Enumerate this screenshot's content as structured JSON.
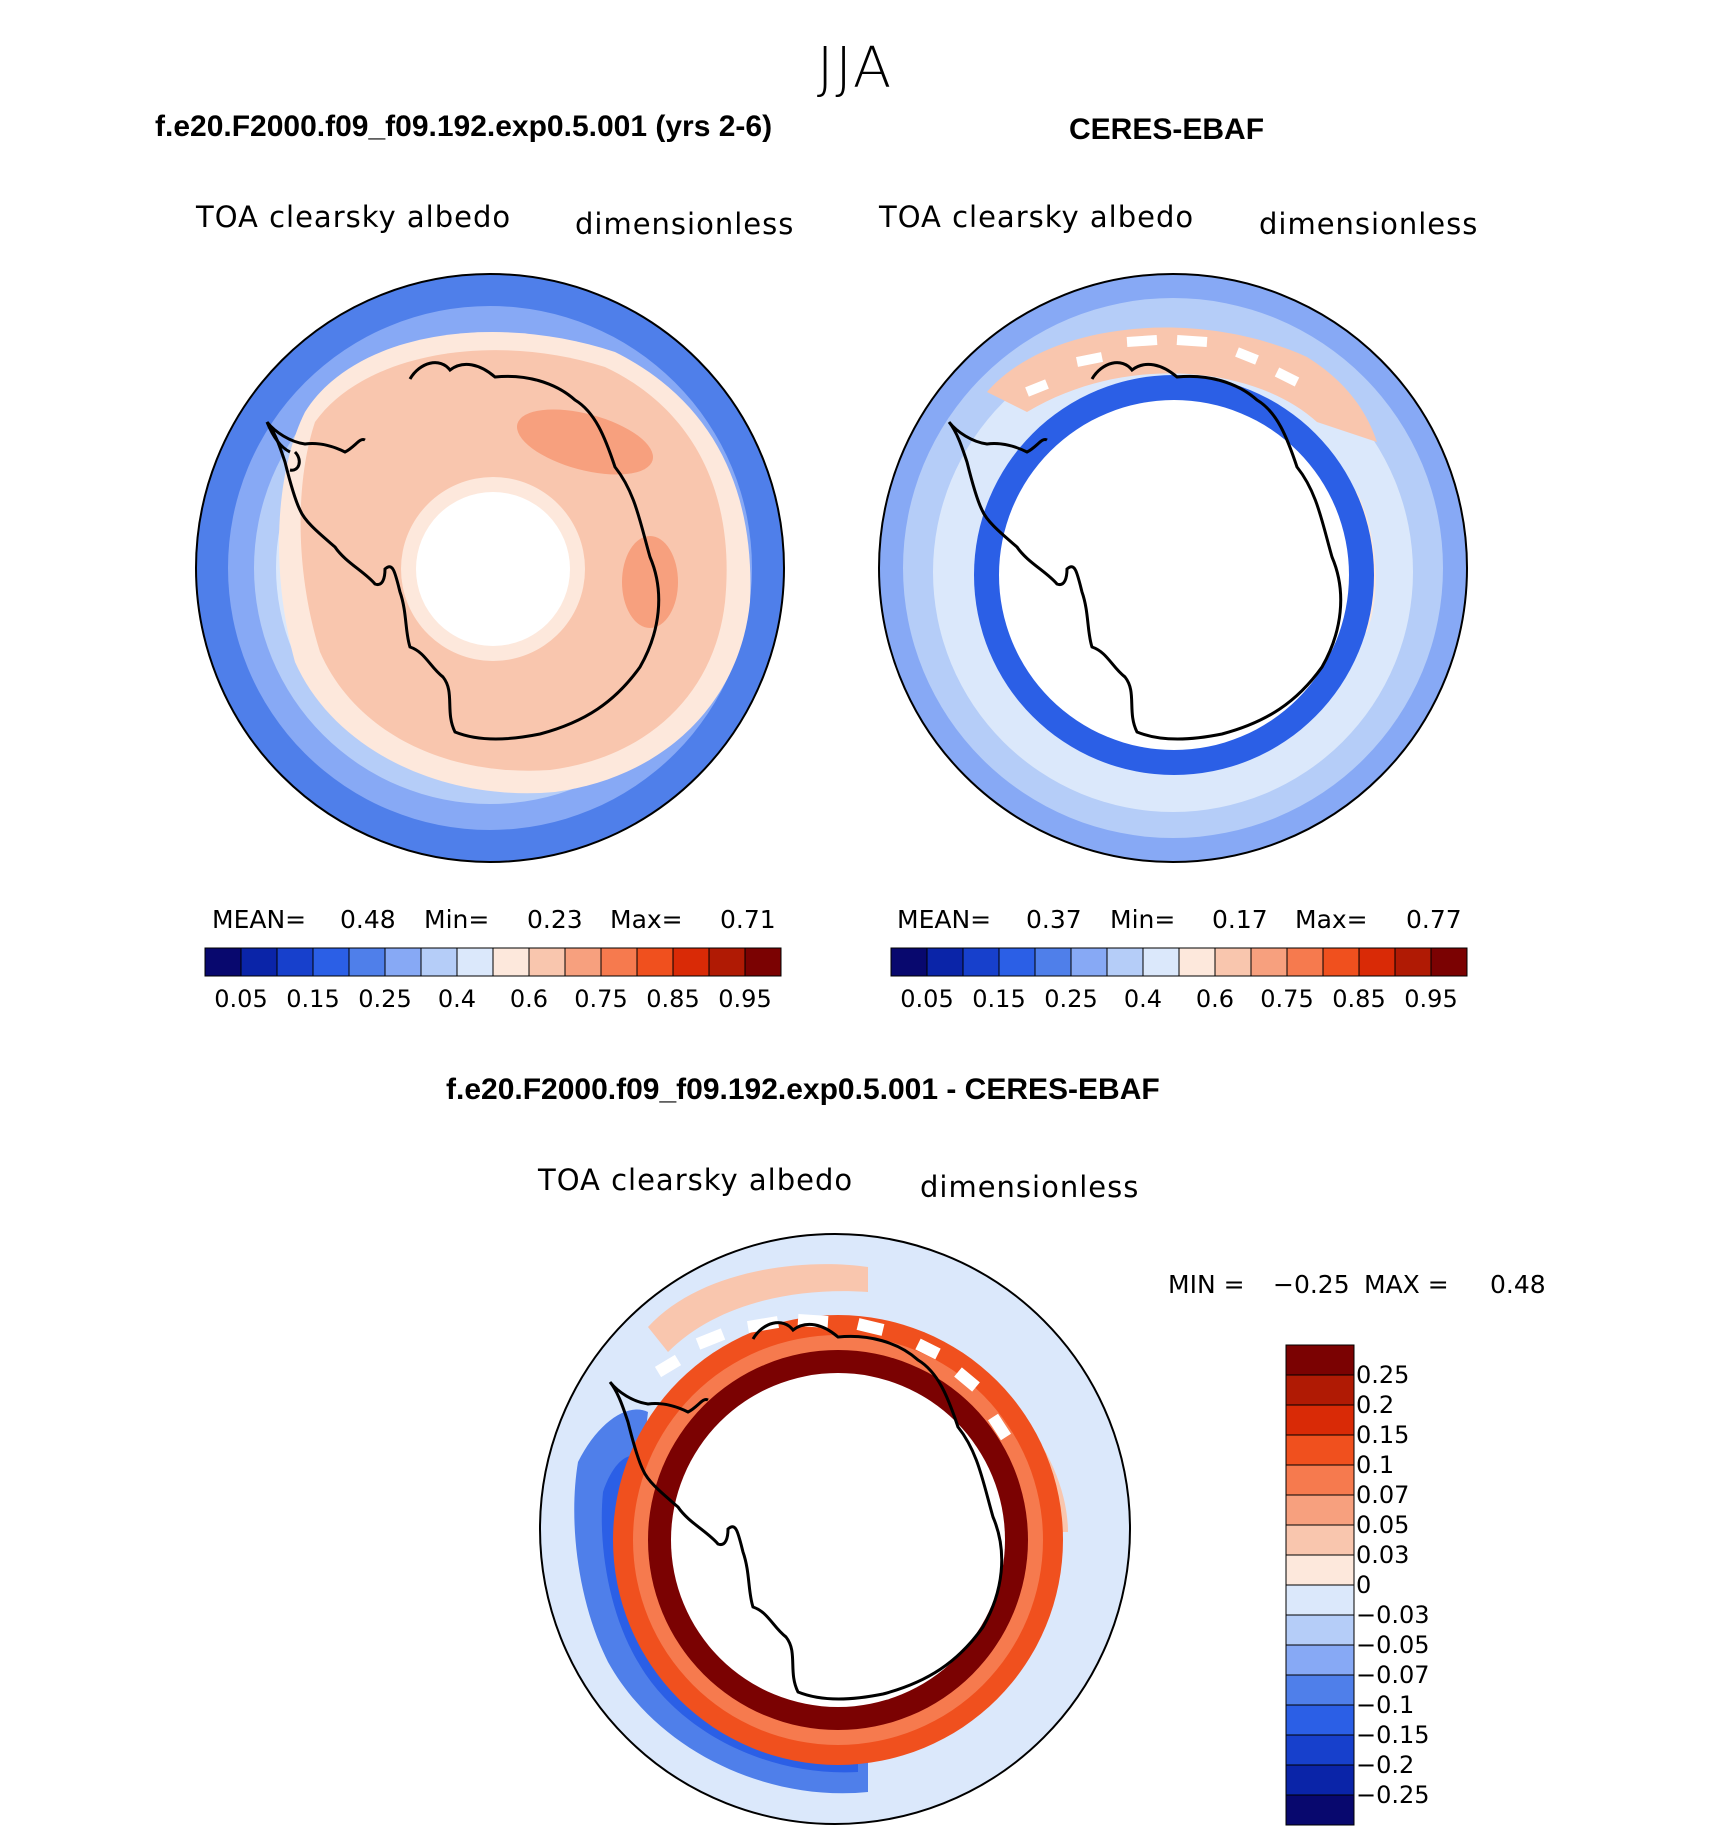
{
  "season": "JJA",
  "panels": {
    "model": {
      "title": "f.e20.F2000.f09_f09.192.exp0.5.001 (yrs 2-6)",
      "variable": "TOA clearsky albedo",
      "units": "dimensionless",
      "mean_label": "MEAN=",
      "mean": "0.48",
      "min_label": "Min=",
      "min": "0.23",
      "max_label": "Max=",
      "max": "0.71"
    },
    "obs": {
      "title": "CERES-EBAF",
      "variable": "TOA clearsky albedo",
      "units": "dimensionless",
      "mean_label": "MEAN=",
      "mean": "0.37",
      "min_label": "Min=",
      "min": "0.17",
      "max_label": "Max=",
      "max": "0.77"
    },
    "diff": {
      "title": "f.e20.F2000.f09_f09.192.exp0.5.001 - CERES-EBAF",
      "variable": "TOA clearsky albedo",
      "units": "dimensionless",
      "min_label": "MIN =",
      "min": "−0.25",
      "max_label": "MAX =",
      "max": "0.48"
    }
  },
  "colorbar_abs": {
    "colors": [
      "#08086e",
      "#0a24a8",
      "#1740cc",
      "#2b5fe6",
      "#4f7fea",
      "#87a9f5",
      "#b5cdf8",
      "#dbe8fb",
      "#fde8dc",
      "#f9c6ae",
      "#f7a07e",
      "#f67a4e",
      "#f0501e",
      "#d92a06",
      "#b01a04",
      "#7b0202"
    ],
    "labels": [
      "0.05",
      "0.15",
      "0.25",
      "0.4",
      "0.6",
      "0.75",
      "0.85",
      "0.95"
    ]
  },
  "colorbar_diff": {
    "colors": [
      "#7b0202",
      "#b01a04",
      "#d92a06",
      "#f0501e",
      "#f67a4e",
      "#f7a07e",
      "#f9c6ae",
      "#fde8dc",
      "#dbe8fb",
      "#b5cdf8",
      "#87a9f5",
      "#4f7fea",
      "#2b5fe6",
      "#1740cc",
      "#0a24a8",
      "#08086e"
    ],
    "labels": [
      "0.25",
      "0.2",
      "0.15",
      "0.1",
      "0.07",
      "0.05",
      "0.03",
      "0",
      "−0.03",
      "−0.05",
      "−0.07",
      "−0.1",
      "−0.15",
      "−0.2",
      "−0.25"
    ]
  }
}
